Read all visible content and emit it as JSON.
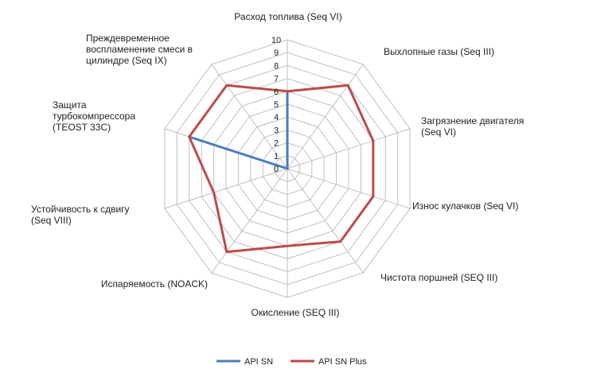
{
  "chart_data": {
    "type": "radar",
    "axes": [
      {
        "label_lines": [
          "Расход топлива (Seq VI)"
        ]
      },
      {
        "label_lines": [
          "Выхлопные газы (Seq III)"
        ]
      },
      {
        "label_lines": [
          "Загрязнение двигателя",
          "(Seq VI)"
        ]
      },
      {
        "label_lines": [
          "Износ кулачков (Seq VI)"
        ]
      },
      {
        "label_lines": [
          "Чистота поршней (SEQ III)"
        ]
      },
      {
        "label_lines": [
          "Окисление (SEQ III)"
        ]
      },
      {
        "label_lines": [
          "Испаряемость (NOACK)"
        ]
      },
      {
        "label_lines": [
          "Устойчивость к сдвигу",
          "(Seq VIII)"
        ]
      },
      {
        "label_lines": [
          "Защита",
          "турбокомпрессора",
          "(TEOST 33C)"
        ]
      },
      {
        "label_lines": [
          "Преждевременное",
          "воспламенение смеси в",
          "цилиндре (Seq IX)"
        ]
      }
    ],
    "ticks": [
      "0",
      "1",
      "2",
      "3",
      "4",
      "5",
      "6",
      "7",
      "8",
      "9",
      "10"
    ],
    "rmax": 10,
    "series": [
      {
        "name": "API SN",
        "color": "#4a7ebb",
        "values": [
          6,
          0,
          0,
          0,
          0,
          0,
          0,
          0,
          8,
          0
        ]
      },
      {
        "name": "API SN Plus",
        "color": "#be4b48",
        "values": [
          6,
          8,
          7,
          7,
          7,
          6,
          8,
          6,
          8,
          8
        ]
      }
    ],
    "legend_position": "bottom"
  }
}
